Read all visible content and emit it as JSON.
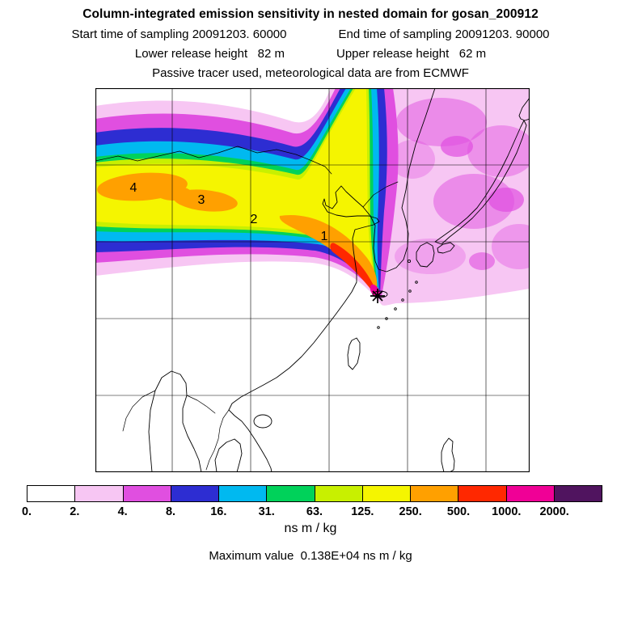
{
  "header": {
    "title": "Column-integrated emission sensitivity in nested domain for gosan_200912",
    "start_time": "Start time of sampling 20091203. 60000",
    "end_time": "End time of sampling 20091203. 90000",
    "lower_release": "Lower release height   82 m",
    "upper_release": "Upper release height   62 m",
    "tracer_line": "Passive tracer used, meteorological data are from ECMWF"
  },
  "map": {
    "point_labels": [
      "4",
      "3",
      "2",
      "1"
    ],
    "receptor_symbol": "*"
  },
  "colorbar": {
    "tick_labels": [
      "0.",
      "2.",
      "4.",
      "8.",
      "16.",
      "31.",
      "63.",
      "125.",
      "250.",
      "500.",
      "1000.",
      "2000."
    ],
    "colors": [
      "#ffffff",
      "#f7c6f3",
      "#e04fe0",
      "#2d2dd2",
      "#00b9f0",
      "#00d25a",
      "#c8f000",
      "#f5f500",
      "#ffa000",
      "#ff2800",
      "#f00096",
      "#50145f"
    ],
    "units": "ns m / kg"
  },
  "footer": {
    "maximum_line": "Maximum value  0.138E+04 ns m / kg"
  },
  "chart_data": {
    "type": "heatmap",
    "title": "Column-integrated emission sensitivity in nested domain for gosan_200912",
    "subtitle_lines": [
      "Start time of sampling 20091203. 60000",
      "End time of sampling 20091203. 90000",
      "Lower release height   82 m",
      "Upper release height   62 m",
      "Passive tracer used, meteorological data are from ECMWF"
    ],
    "units": "ns m / kg",
    "levels": [
      0,
      2,
      4,
      8,
      16,
      31,
      63,
      125,
      250,
      500,
      1000,
      2000
    ],
    "level_labels": [
      "0.",
      "2.",
      "4.",
      "8.",
      "16.",
      "31.",
      "63.",
      "125.",
      "250.",
      "500.",
      "1000.",
      "2000."
    ],
    "level_colors": [
      "#ffffff",
      "#f7c6f3",
      "#e04fe0",
      "#2d2dd2",
      "#00b9f0",
      "#00d25a",
      "#c8f000",
      "#f5f500",
      "#ffa000",
      "#ff2800",
      "#f00096",
      "#50145f"
    ],
    "maximum_value": "0.138E+04 ns m / kg",
    "receptor_site": "gosan",
    "sampling_start": "20091203. 60000",
    "sampling_end": "20091203. 90000",
    "lower_release_height": "82 m",
    "upper_release_height": "62 m",
    "plume_point_labels": [
      "1",
      "2",
      "3",
      "4"
    ],
    "legend_position": "bottom"
  }
}
